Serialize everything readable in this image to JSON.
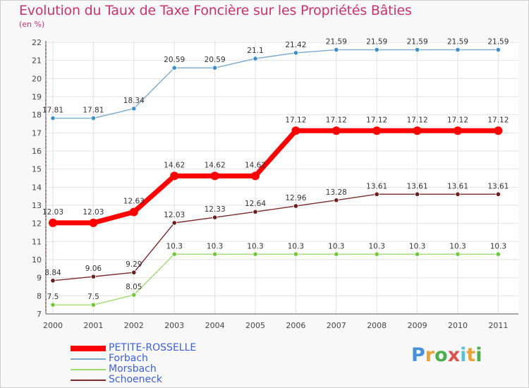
{
  "header": {
    "title": "Evolution du Taux de Taxe Foncière sur les Propriétés Bâties",
    "subtitle": "(en %)"
  },
  "logo": {
    "letters": [
      "P",
      "r",
      "o",
      "x",
      "i",
      "t",
      "i"
    ],
    "colors": [
      "#4a90d9",
      "#e8a33a",
      "#4cae4c",
      "#d9534f",
      "#5bc0de",
      "#e8a33a",
      "#4cae4c"
    ]
  },
  "chart_data": {
    "type": "line",
    "title": "Evolution du Taux de Taxe Foncière sur les Propriétés Bâties",
    "ylabel": "(en %)",
    "xlabel": "",
    "x": [
      "2000",
      "2001",
      "2002",
      "2003",
      "2004",
      "2005",
      "2006",
      "2007",
      "2008",
      "2009",
      "2010",
      "2011"
    ],
    "ylim": [
      7,
      22
    ],
    "yticks": [
      "7",
      "8",
      "9",
      "10",
      "11",
      "12",
      "13",
      "14",
      "15",
      "16",
      "17",
      "18",
      "19",
      "20",
      "21",
      "22"
    ],
    "grid": true,
    "legend_position": "bottom-left",
    "series": [
      {
        "name": "PETITE-ROSSELLE",
        "color": "#ff0000",
        "emphasis": true,
        "values": [
          12.03,
          12.03,
          12.63,
          14.62,
          14.62,
          14.62,
          17.12,
          17.12,
          17.12,
          17.12,
          17.12,
          17.12
        ],
        "labels": [
          "12.03",
          "12.03",
          "12.63",
          "14.62",
          "14.62",
          "14.62",
          "17.12",
          "17.12",
          "17.12",
          "17.12",
          "17.12",
          "17.12"
        ]
      },
      {
        "name": "Forbach",
        "color": "#7aa8cc",
        "marker_color": "#3d8fcc",
        "values": [
          17.81,
          17.81,
          18.34,
          20.59,
          20.59,
          21.1,
          21.42,
          21.59,
          21.59,
          21.59,
          21.59,
          21.59
        ],
        "labels": [
          "17.81",
          "17.81",
          "18.34",
          "20.59",
          "20.59",
          "21.1",
          "21.42",
          "21.59",
          "21.59",
          "21.59",
          "21.59",
          "21.59"
        ]
      },
      {
        "name": "Morsbach",
        "color": "#9fdc6e",
        "marker_color": "#6fc93a",
        "values": [
          7.5,
          7.5,
          8.05,
          10.3,
          10.3,
          10.3,
          10.3,
          10.3,
          10.3,
          10.3,
          10.3,
          10.3
        ],
        "labels": [
          "7.5",
          "7.5",
          "8.05",
          "10.3",
          "10.3",
          "10.3",
          "10.3",
          "10.3",
          "10.3",
          "10.3",
          "10.3",
          "10.3"
        ]
      },
      {
        "name": "Schoeneck",
        "color": "#7a2a2a",
        "marker_color": "#6b1f1f",
        "values": [
          8.84,
          9.06,
          9.29,
          12.03,
          12.33,
          12.64,
          12.96,
          13.28,
          13.61,
          13.61,
          13.61,
          13.61
        ],
        "labels": [
          "8.84",
          "9.06",
          "9.29",
          "12.03",
          "12.33",
          "12.64",
          "12.96",
          "13.28",
          "13.61",
          "13.61",
          "13.61",
          "13.61"
        ]
      }
    ]
  }
}
